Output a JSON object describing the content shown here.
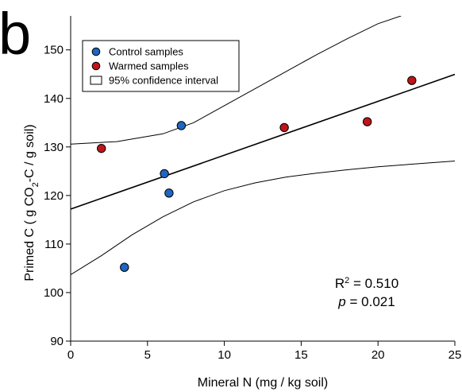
{
  "panel_label": "b",
  "stats": {
    "r2_prefix": "R",
    "r2_sup": "2",
    "r2_value": " = 0.510",
    "p_symbol": "p",
    "p_value": " = 0.021"
  },
  "chart_data": {
    "type": "scatter",
    "title": "",
    "xlabel": "Mineral N (mg / kg soil)",
    "ylabel_parts": {
      "prefix": "Primed C (  g CO",
      "sub": "2",
      "suffix": "-C / g soil)"
    },
    "xlim": [
      0,
      25
    ],
    "ylim": [
      90,
      157
    ],
    "xticks": [
      0,
      5,
      10,
      15,
      20,
      25
    ],
    "yticks": [
      90,
      100,
      110,
      120,
      130,
      140,
      150
    ],
    "grid": false,
    "legend_position": "top-left",
    "legend": [
      {
        "label": "Control samples",
        "marker": "circle",
        "color": "#1f66c1"
      },
      {
        "label": "Warmed samples",
        "marker": "circle",
        "color": "#c0141b"
      },
      {
        "label": "95% confidence interval",
        "marker": "box",
        "color": "#ffffff"
      }
    ],
    "series": [
      {
        "name": "Control samples",
        "color": "#1f66c1",
        "points": [
          [
            3.5,
            105.2
          ],
          [
            6.1,
            124.5
          ],
          [
            6.4,
            120.5
          ],
          [
            7.2,
            134.4
          ]
        ]
      },
      {
        "name": "Warmed samples",
        "color": "#c0141b",
        "points": [
          [
            2.0,
            129.7
          ],
          [
            13.9,
            134.0
          ],
          [
            19.3,
            135.2
          ],
          [
            22.2,
            143.7
          ]
        ]
      }
    ],
    "regression": {
      "intercept": 117.2,
      "slope": 1.11
    },
    "confidence_upper": [
      [
        0,
        130.6
      ],
      [
        3,
        131.1
      ],
      [
        6,
        132.7
      ],
      [
        8,
        135.0
      ],
      [
        10,
        138.5
      ],
      [
        12,
        142.0
      ],
      [
        14,
        145.5
      ],
      [
        16,
        149.0
      ],
      [
        18,
        152.3
      ],
      [
        20,
        155.4
      ],
      [
        21.5,
        157.0
      ]
    ],
    "confidence_lower": [
      [
        0,
        103.7
      ],
      [
        2,
        107.6
      ],
      [
        4,
        111.9
      ],
      [
        6,
        115.6
      ],
      [
        8,
        118.7
      ],
      [
        10,
        121.0
      ],
      [
        12,
        122.6
      ],
      [
        14,
        123.8
      ],
      [
        16,
        124.6
      ],
      [
        18,
        125.3
      ],
      [
        20,
        125.9
      ],
      [
        22,
        126.4
      ],
      [
        25,
        127.1
      ]
    ]
  }
}
